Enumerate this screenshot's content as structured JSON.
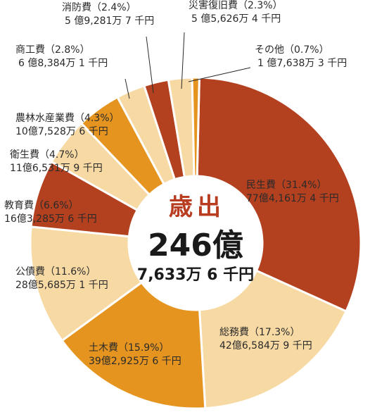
{
  "chart_data": {
    "type": "pie",
    "title": "歳出",
    "total_main": "246億",
    "total_sub": "7,633万 6 千円",
    "slices": [
      {
        "name": "民生費",
        "percent_label": "（31.4%）",
        "amount": "77億4,161万 4 千円",
        "value": 31.4,
        "color": "#b3401f"
      },
      {
        "name": "総務費",
        "percent_label": "（17.3%）",
        "amount": "42億6,584万 9 千円",
        "value": 17.3,
        "color": "#f7d9a4"
      },
      {
        "name": "土木費",
        "percent_label": "（15.9%）",
        "amount": "39億2,925万 6 千円",
        "value": 15.9,
        "color": "#e5951f"
      },
      {
        "name": "公債費",
        "percent_label": "（11.6%）",
        "amount": "28億5,685万 1 千円",
        "value": 11.6,
        "color": "#f7d9a4"
      },
      {
        "name": "教育費",
        "percent_label": "（6.6%）",
        "amount": "16億3,285万 6 千円",
        "value": 6.6,
        "color": "#b3401f"
      },
      {
        "name": "衛生費",
        "percent_label": "（4.7%）",
        "amount": "11億6,531万 9 千円",
        "value": 4.7,
        "color": "#f7d9a4"
      },
      {
        "name": "農林水産業費",
        "percent_label": "（4.3%）",
        "amount": "10億7,528万 6 千円",
        "value": 4.3,
        "color": "#e5951f"
      },
      {
        "name": "商工費",
        "percent_label": "（2.8%）",
        "amount": "6 億8,384万 1 千円",
        "value": 2.8,
        "color": "#f7d9a4"
      },
      {
        "name": "消防費",
        "percent_label": "（2.4%）",
        "amount": "5 億9,281万 7 千円",
        "value": 2.4,
        "color": "#b3401f"
      },
      {
        "name": "災害復旧費",
        "percent_label": "（2.3%）",
        "amount": "5 億5,626万 4 千円",
        "value": 2.3,
        "color": "#f7d9a4"
      },
      {
        "name": "その他",
        "percent_label": "（0.7%）",
        "amount": "1 億7,638万 3 千円",
        "value": 0.7,
        "color": "#e5951f"
      }
    ]
  }
}
